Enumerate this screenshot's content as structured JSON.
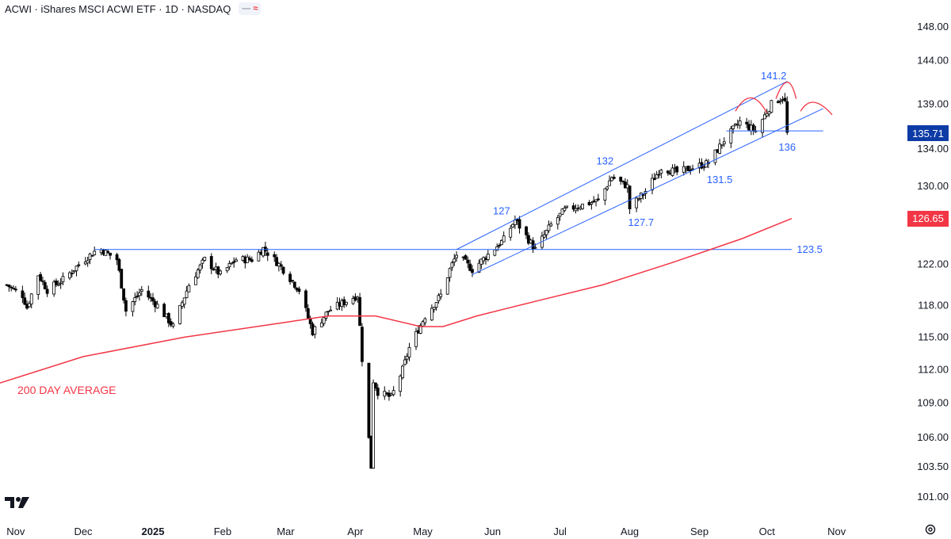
{
  "header": {
    "title": "ACWI · iShares MSCI ACWI ETF · 1D · NASDAQ",
    "pill_minus": "—",
    "pill_wave": "≈"
  },
  "ma_label": "200 DAY AVERAGE",
  "last_price": {
    "value": "135.71",
    "color": "#0d3ba6"
  },
  "ma_price": {
    "value": "126.65",
    "color": "#f23645"
  },
  "chart_data": {
    "type": "candlestick",
    "title": "ACWI · iShares MSCI ACWI ETF · 1D · NASDAQ",
    "y_scale": "log",
    "ylim": [
      99.5,
      150.5
    ],
    "y_ticks": [
      "148.00",
      "144.00",
      "139.00",
      "134.00",
      "130.00",
      "122.00",
      "118.00",
      "115.00",
      "112.00",
      "109.00",
      "106.00",
      "103.50",
      "101.00"
    ],
    "x_ticks": [
      {
        "label": "Nov",
        "bold": false
      },
      {
        "label": "Dec",
        "bold": false
      },
      {
        "label": "2025",
        "bold": true
      },
      {
        "label": "Feb",
        "bold": false
      },
      {
        "label": "Mar",
        "bold": false
      },
      {
        "label": "Apr",
        "bold": false
      },
      {
        "label": "May",
        "bold": false
      },
      {
        "label": "Jun",
        "bold": false
      },
      {
        "label": "Jul",
        "bold": false
      },
      {
        "label": "Aug",
        "bold": false
      },
      {
        "label": "Sep",
        "bold": false
      },
      {
        "label": "Oct",
        "bold": false
      },
      {
        "label": "Nov",
        "bold": false
      }
    ],
    "x_range": [
      "2024-10-25",
      "2025-11-30"
    ],
    "price_path": [
      [
        "2024-10-28",
        120.0
      ],
      [
        "2024-11-04",
        119.0
      ],
      [
        "2024-11-06",
        117.8
      ],
      [
        "2024-11-11",
        121.0
      ],
      [
        "2024-11-15",
        119.5
      ],
      [
        "2024-11-22",
        120.5
      ],
      [
        "2024-11-29",
        122.0
      ],
      [
        "2024-12-06",
        123.3
      ],
      [
        "2024-12-09",
        123.5
      ],
      [
        "2024-12-16",
        122.5
      ],
      [
        "2024-12-20",
        117.5
      ],
      [
        "2024-12-27",
        119.5
      ],
      [
        "2025-01-03",
        118.0
      ],
      [
        "2025-01-10",
        116.0
      ],
      [
        "2025-01-17",
        120.0
      ],
      [
        "2025-01-24",
        122.5
      ],
      [
        "2025-01-31",
        121.0
      ],
      [
        "2025-02-07",
        122.5
      ],
      [
        "2025-02-14",
        122.5
      ],
      [
        "2025-02-19",
        123.6
      ],
      [
        "2025-02-24",
        122.5
      ],
      [
        "2025-02-28",
        121.5
      ],
      [
        "2025-03-07",
        119.5
      ],
      [
        "2025-03-13",
        115.5
      ],
      [
        "2025-03-20",
        117.5
      ],
      [
        "2025-03-26",
        118.2
      ],
      [
        "2025-04-02",
        119.0
      ],
      [
        "2025-04-04",
        113.0
      ],
      [
        "2025-04-08",
        103.5
      ],
      [
        "2025-04-09",
        111.0
      ],
      [
        "2025-04-11",
        110.0
      ],
      [
        "2025-04-17",
        109.5
      ],
      [
        "2025-04-22",
        112.0
      ],
      [
        "2025-04-25",
        114.0
      ],
      [
        "2025-05-02",
        117.0
      ],
      [
        "2025-05-09",
        119.0
      ],
      [
        "2025-05-13",
        121.5
      ],
      [
        "2025-05-16",
        123.0
      ],
      [
        "2025-05-23",
        121.5
      ],
      [
        "2025-05-30",
        123.0
      ],
      [
        "2025-06-06",
        124.5
      ],
      [
        "2025-06-11",
        126.5
      ],
      [
        "2025-06-20",
        123.5
      ],
      [
        "2025-06-27",
        126.0
      ],
      [
        "2025-07-03",
        127.5
      ],
      [
        "2025-07-10",
        128.0
      ],
      [
        "2025-07-18",
        128.5
      ],
      [
        "2025-07-24",
        131.0
      ],
      [
        "2025-07-31",
        130.0
      ],
      [
        "2025-08-01",
        127.7
      ],
      [
        "2025-08-08",
        129.5
      ],
      [
        "2025-08-15",
        132.0
      ],
      [
        "2025-08-22",
        131.5
      ],
      [
        "2025-08-29",
        132.0
      ],
      [
        "2025-09-05",
        132.5
      ],
      [
        "2025-09-12",
        135.0
      ],
      [
        "2025-09-19",
        137.0
      ],
      [
        "2025-09-26",
        136.0
      ],
      [
        "2025-10-03",
        139.0
      ],
      [
        "2025-10-08",
        139.8
      ],
      [
        "2025-10-09",
        139.2
      ],
      [
        "2025-10-10",
        135.71
      ]
    ],
    "series": [
      {
        "name": "200 DAY AVERAGE",
        "color": "#f23645",
        "type": "line",
        "points": [
          [
            "2024-10-25",
            110.8
          ],
          [
            "2024-12-01",
            113.2
          ],
          [
            "2025-01-15",
            115.0
          ],
          [
            "2025-03-01",
            116.4
          ],
          [
            "2025-03-20",
            117.0
          ],
          [
            "2025-04-10",
            117.0
          ],
          [
            "2025-04-30",
            116.0
          ],
          [
            "2025-05-10",
            116.0
          ],
          [
            "2025-05-25",
            117.0
          ],
          [
            "2025-06-20",
            118.4
          ],
          [
            "2025-07-20",
            120.0
          ],
          [
            "2025-08-20",
            122.2
          ],
          [
            "2025-09-20",
            124.6
          ],
          [
            "2025-10-12",
            126.65
          ]
        ]
      }
    ],
    "trendlines": [
      {
        "name": "horizontal-resistance-123.5",
        "color": "#2962ff",
        "points": [
          [
            "2024-12-06",
            123.5
          ],
          [
            "2025-10-12",
            123.5
          ]
        ]
      },
      {
        "name": "channel-upper",
        "color": "#2962ff",
        "points": [
          [
            "2025-05-16",
            123.5
          ],
          [
            "2025-10-10",
            141.6
          ]
        ]
      },
      {
        "name": "channel-lower",
        "color": "#2962ff",
        "points": [
          [
            "2025-05-23",
            121.0
          ],
          [
            "2025-10-26",
            138.5
          ]
        ]
      },
      {
        "name": "neckline-136",
        "color": "#2962ff",
        "points": [
          [
            "2025-09-13",
            136.0
          ],
          [
            "2025-10-26",
            136.0
          ]
        ]
      }
    ],
    "arcs": [
      {
        "name": "left-shoulder",
        "color": "#f23645",
        "points": [
          [
            "2025-09-17",
            138.2
          ],
          [
            "2025-09-24",
            139.7
          ],
          [
            "2025-10-01",
            138.0
          ]
        ]
      },
      {
        "name": "head",
        "color": "#f23645",
        "points": [
          [
            "2025-10-05",
            139.6
          ],
          [
            "2025-10-10",
            141.5
          ],
          [
            "2025-10-14",
            139.6
          ]
        ]
      },
      {
        "name": "right-shoulder-projected",
        "color": "#f23645",
        "points": [
          [
            "2025-10-16",
            138.2
          ],
          [
            "2025-10-22",
            139.2
          ],
          [
            "2025-10-30",
            137.8
          ]
        ]
      }
    ],
    "annotations": [
      {
        "text": "141.2",
        "date": "2025-10-04",
        "price": 142.2
      },
      {
        "text": "132",
        "date": "2025-07-21",
        "price": 132.7
      },
      {
        "text": "127",
        "date": "2025-06-05",
        "price": 127.4
      },
      {
        "text": "131.5",
        "date": "2025-09-10",
        "price": 130.7
      },
      {
        "text": "127.7",
        "date": "2025-08-06",
        "price": 126.2
      },
      {
        "text": "123.5",
        "date": "2025-10-20",
        "price": 123.5
      },
      {
        "text": "136",
        "date": "2025-10-10",
        "price": 134.2
      }
    ]
  }
}
